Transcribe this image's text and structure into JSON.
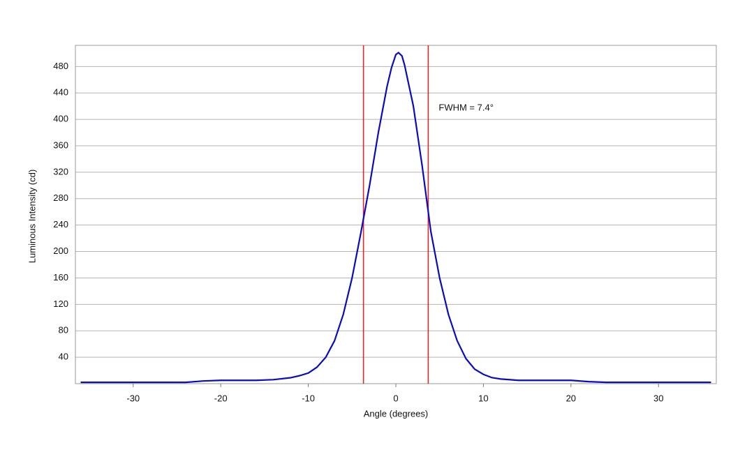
{
  "chart_data": {
    "type": "line",
    "x_label": "Angle (degrees)",
    "y_label": "Luminous Intensity (cd)",
    "annotation": "FWHM = 7.4°",
    "x": [
      -36,
      -34,
      -32,
      -30,
      -28,
      -26,
      -24,
      -22,
      -20,
      -18,
      -16,
      -14,
      -12,
      -11,
      -10,
      -9,
      -8,
      -7,
      -6,
      -5,
      -4,
      -3,
      -2,
      -1,
      -0.5,
      0,
      0.3,
      0.7,
      1,
      2,
      3,
      4,
      5,
      6,
      7,
      8,
      9,
      10,
      11,
      12,
      14,
      16,
      18,
      20,
      22,
      24,
      26,
      28,
      30,
      32,
      34,
      36
    ],
    "values": [
      2,
      2,
      2,
      2,
      2,
      2,
      2,
      4,
      5,
      5,
      5,
      6,
      9,
      12,
      16,
      25,
      40,
      65,
      105,
      160,
      228,
      300,
      380,
      450,
      478,
      498,
      501,
      496,
      482,
      420,
      330,
      230,
      160,
      105,
      65,
      38,
      22,
      14,
      9,
      7,
      5,
      5,
      5,
      5,
      3,
      2,
      2,
      2,
      2,
      2,
      2,
      2
    ],
    "color": "#0a0ac0",
    "vlines": [
      -3.7,
      3.7
    ],
    "vline_color": "#d42a2a",
    "xlim": [
      -36.6,
      36.6
    ],
    "ylim": [
      0,
      512
    ],
    "xticks": [
      -30,
      -20,
      -10,
      0,
      10,
      20,
      30
    ],
    "yticks": [
      40,
      80,
      120,
      160,
      200,
      240,
      280,
      320,
      360,
      400,
      440,
      480
    ],
    "grid": true
  }
}
